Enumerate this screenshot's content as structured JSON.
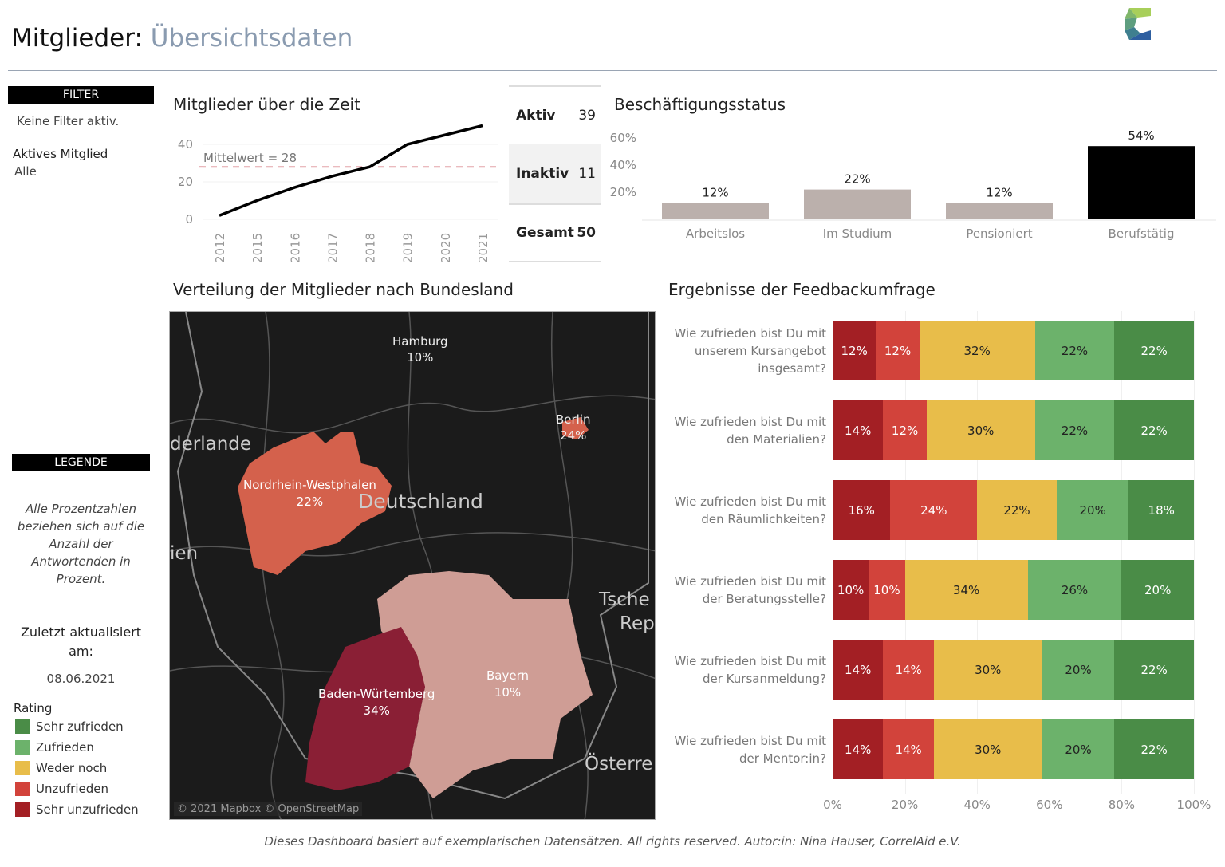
{
  "header": {
    "title": "Mitglieder:",
    "subtitle": "Übersichtsdaten",
    "logo": "correlaid-logo"
  },
  "filter": {
    "header": "FILTER",
    "status": "Keine Filter aktiv.",
    "field_label": "Aktives Mitglied",
    "field_value": "Alle"
  },
  "legend": {
    "header": "LEGENDE",
    "note": "Alle Prozentzahlen beziehen sich auf die Anzahl der Antwortenden in Prozent.",
    "updated_label": "Zuletzt aktualisiert am:",
    "updated_date": "08.06.2021",
    "rating_title": "Rating",
    "ratings": [
      {
        "label": "Sehr zufrieden",
        "color": "#4a8c47"
      },
      {
        "label": "Zufrieden",
        "color": "#6cb26b"
      },
      {
        "label": "Weder noch",
        "color": "#e8bd4a"
      },
      {
        "label": "Unzufrieden",
        "color": "#d2433b"
      },
      {
        "label": "Sehr unzufrieden",
        "color": "#a31f24"
      }
    ]
  },
  "line_chart": {
    "title": "Mitglieder über die Zeit",
    "mean_label": "Mittelwert = 28",
    "chart_data": {
      "type": "line",
      "x": [
        "2012",
        "2015",
        "2016",
        "2017",
        "2018",
        "2019",
        "2020",
        "2021"
      ],
      "values": [
        2,
        10,
        17,
        23,
        28,
        40,
        45,
        50
      ],
      "mean": 28,
      "yticks": [
        "0",
        "20",
        "40"
      ],
      "ylim": [
        0,
        55
      ]
    }
  },
  "kpis": [
    {
      "label": "Aktiv",
      "value": "39"
    },
    {
      "label": "Inaktiv",
      "value": "11"
    },
    {
      "label": "Gesamt",
      "value": "50"
    }
  ],
  "bar_chart": {
    "title": "Beschäftigungsstatus",
    "chart_data": {
      "type": "bar",
      "categories": [
        "Arbeitslos",
        "Im Studium",
        "Pensioniert",
        "Berufstätig"
      ],
      "values": [
        12,
        22,
        12,
        54
      ],
      "labels": [
        "12%",
        "22%",
        "12%",
        "54%"
      ],
      "colors": [
        "#bbb0ac",
        "#bbb0ac",
        "#bbb0ac",
        "#000000"
      ],
      "yticks": [
        "20%",
        "40%",
        "60%"
      ],
      "ylim": [
        0,
        60
      ]
    }
  },
  "map": {
    "title": "Verteilung der Mitglieder nach Bundesland",
    "attribution": "© 2021 Mapbox © OpenStreetMap",
    "labels": {
      "country": "Deutschland",
      "nl": "derlande",
      "be": "ien",
      "cz1": "Tsche",
      "cz2": "Rep",
      "at": "Österre"
    },
    "regions": [
      {
        "name": "Hamburg",
        "value": "10%"
      },
      {
        "name": "Berlin",
        "value": "24%"
      },
      {
        "name": "Nordrhein-Westphalen",
        "value": "22%"
      },
      {
        "name": "Bayern",
        "value": "10%"
      },
      {
        "name": "Baden-Würtemberg",
        "value": "34%"
      }
    ]
  },
  "feedback": {
    "title": "Ergebnisse der Feedbackumfrage",
    "xticks": [
      "0%",
      "20%",
      "40%",
      "60%",
      "80%",
      "100%"
    ],
    "chart_data": {
      "type": "bar",
      "orientation": "horizontal",
      "stacked": true,
      "series_order": [
        "Sehr unzufrieden",
        "Unzufrieden",
        "Weder noch",
        "Zufrieden",
        "Sehr zufrieden"
      ],
      "questions": [
        {
          "q": "Wie zufrieden bist Du mit unserem Kursangebot insgesamt?",
          "values": [
            12,
            12,
            32,
            22,
            22
          ]
        },
        {
          "q": "Wie zufrieden bist Du mit den Materialien?",
          "values": [
            14,
            12,
            30,
            22,
            22
          ]
        },
        {
          "q": "Wie zufrieden bist Du mit den Räumlichkeiten?",
          "values": [
            16,
            24,
            22,
            20,
            18
          ]
        },
        {
          "q": "Wie zufrieden bist Du mit der Beratungsstelle?",
          "values": [
            10,
            10,
            34,
            26,
            20
          ]
        },
        {
          "q": "Wie zufrieden bist Du mit der Kursanmeldung?",
          "values": [
            14,
            14,
            30,
            20,
            22
          ]
        },
        {
          "q": "Wie zufrieden bist Du mit der Mentor:in?",
          "values": [
            14,
            14,
            30,
            20,
            22
          ]
        }
      ]
    }
  },
  "footer": "Dieses Dashboard basiert auf exemplarischen Datensätzen. All rights reserved. Autor:in: Nina Hauser, CorrelAid e.V."
}
